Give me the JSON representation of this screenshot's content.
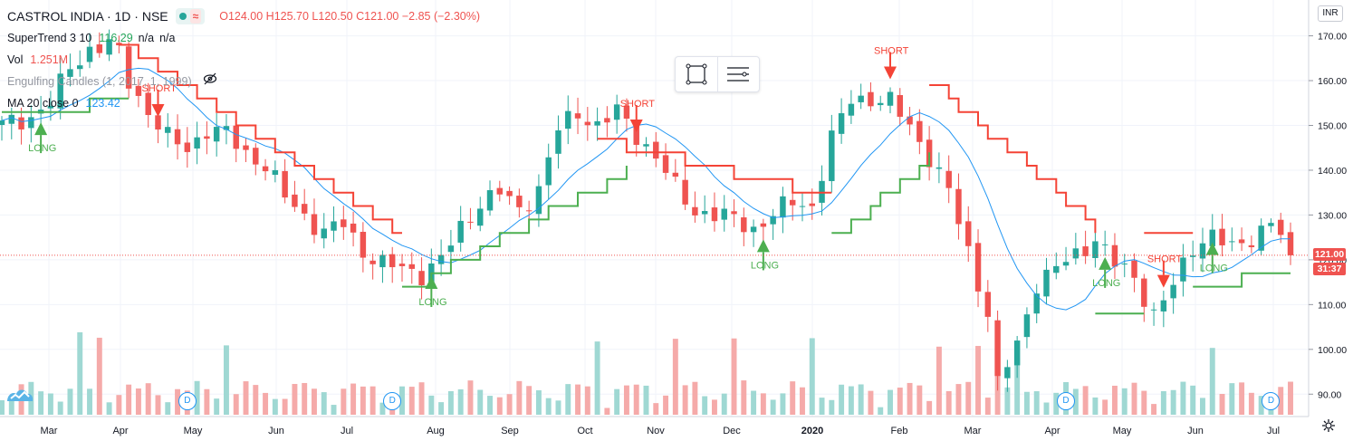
{
  "header": {
    "symbol": "CASTROL INDIA · 1D · NSE",
    "wave_icon": "≈",
    "ohlc_open": "O124.00",
    "ohlc_high": "H125.70",
    "ohlc_low": "L120.50",
    "ohlc_close": "C121.00",
    "ohlc_change": "−2.85 (−2.30%)"
  },
  "indicators": {
    "supertrend_label": "SuperTrend 3 10",
    "supertrend_value": "116.29",
    "supertrend_na1": "n/a",
    "supertrend_na2": "n/a",
    "vol_label": "Vol",
    "vol_value": "1.251M",
    "engulfing_label": "Engulfing Candles (1, 2017, 1, 1999)",
    "ma_label": "MA 20 close 0",
    "ma_value": "123.42"
  },
  "currency": "INR",
  "price_tags": {
    "last_price": "121.00",
    "countdown": "31:37"
  },
  "colors": {
    "up": "#26a69a",
    "down": "#ef5350",
    "supertrend_up": "#4caf50",
    "supertrend_down": "#f44336",
    "ma": "#2196f3",
    "volume_up": "#9fd8d3",
    "volume_down": "#f5aaa9"
  },
  "icons": [
    "wave-icon",
    "eye-slash-icon",
    "rectangle-tool-icon",
    "settings-lines-icon",
    "gear-icon",
    "tradingview-logo-icon",
    "dividend-icon"
  ],
  "chart_data": {
    "type": "candlestick",
    "y_axis": {
      "range": [
        85,
        178
      ],
      "ticks": [
        90,
        100,
        110,
        120,
        130,
        140,
        150,
        160,
        170
      ]
    },
    "x_axis": {
      "tick_labels": [
        "Mar",
        "Apr",
        "May",
        "Jun",
        "Jul",
        "Aug",
        "Sep",
        "Oct",
        "Nov",
        "Dec",
        "2020",
        "Feb",
        "Mar",
        "Apr",
        "May",
        "Jun",
        "Jul"
      ]
    },
    "last_price": 121.0,
    "close_path": [
      [
        0,
        150
      ],
      [
        3,
        152
      ],
      [
        5,
        155
      ],
      [
        7,
        163
      ],
      [
        9,
        167
      ],
      [
        11,
        168
      ],
      [
        12,
        166
      ],
      [
        13,
        160
      ],
      [
        15,
        153
      ],
      [
        17,
        147
      ],
      [
        19,
        145
      ],
      [
        21,
        149
      ],
      [
        23,
        148
      ],
      [
        25,
        144
      ],
      [
        27,
        141
      ],
      [
        29,
        134
      ],
      [
        31,
        130
      ],
      [
        33,
        126
      ],
      [
        35,
        128
      ],
      [
        37,
        122
      ],
      [
        39,
        119
      ],
      [
        41,
        118
      ],
      [
        43,
        117
      ],
      [
        45,
        120
      ],
      [
        47,
        127
      ],
      [
        49,
        133
      ],
      [
        51,
        135
      ],
      [
        53,
        131
      ],
      [
        55,
        136
      ],
      [
        57,
        149
      ],
      [
        59,
        153
      ],
      [
        61,
        150
      ],
      [
        63,
        153
      ],
      [
        65,
        148
      ],
      [
        67,
        143
      ],
      [
        69,
        136
      ],
      [
        71,
        131
      ],
      [
        73,
        130
      ],
      [
        75,
        129
      ],
      [
        77,
        127
      ],
      [
        79,
        130
      ],
      [
        81,
        133
      ],
      [
        83,
        132
      ],
      [
        85,
        147
      ],
      [
        87,
        156
      ],
      [
        89,
        156
      ],
      [
        91,
        155
      ],
      [
        93,
        150
      ],
      [
        95,
        143
      ],
      [
        97,
        135
      ],
      [
        99,
        122
      ],
      [
        101,
        108
      ],
      [
        102,
        92
      ],
      [
        104,
        101
      ],
      [
        106,
        115
      ],
      [
        108,
        118
      ],
      [
        110,
        121
      ],
      [
        112,
        125
      ],
      [
        114,
        119
      ],
      [
        116,
        116
      ],
      [
        118,
        108
      ],
      [
        120,
        114
      ],
      [
        122,
        123
      ],
      [
        124,
        126
      ],
      [
        126,
        122
      ],
      [
        128,
        125
      ],
      [
        130,
        129
      ],
      [
        132,
        121
      ]
    ],
    "supertrend_up_segments": [
      {
        "x": [
          0,
          13
        ],
        "y": [
          152,
          156
        ]
      },
      {
        "x": [
          41,
          64
        ],
        "y": [
          113,
          140
        ]
      },
      {
        "x": [
          85,
          95
        ],
        "y": [
          125,
          143
        ]
      },
      {
        "x": [
          112,
          117
        ],
        "y": [
          109,
          109
        ]
      },
      {
        "x": [
          122,
          132
        ],
        "y": [
          114,
          117
        ]
      }
    ],
    "supertrend_down_segments": [
      {
        "x": [
          12,
          41
        ],
        "y": [
          168,
          126
        ]
      },
      {
        "x": [
          61,
          85
        ],
        "y": [
          147,
          134
        ]
      },
      {
        "x": [
          95,
          112
        ],
        "y": [
          160,
          127
        ]
      },
      {
        "x": [
          117,
          122
        ],
        "y": [
          126,
          126
        ]
      }
    ],
    "signals": [
      {
        "type": "LONG",
        "index": 4
      },
      {
        "type": "SHORT",
        "index": 16
      },
      {
        "type": "LONG",
        "index": 44
      },
      {
        "type": "SHORT",
        "index": 65
      },
      {
        "type": "LONG",
        "index": 78
      },
      {
        "type": "SHORT",
        "index": 91
      },
      {
        "type": "LONG",
        "index": 113
      },
      {
        "type": "SHORT",
        "index": 119
      },
      {
        "type": "LONG",
        "index": 124
      }
    ],
    "dividends": [
      19,
      40,
      109,
      130
    ]
  }
}
